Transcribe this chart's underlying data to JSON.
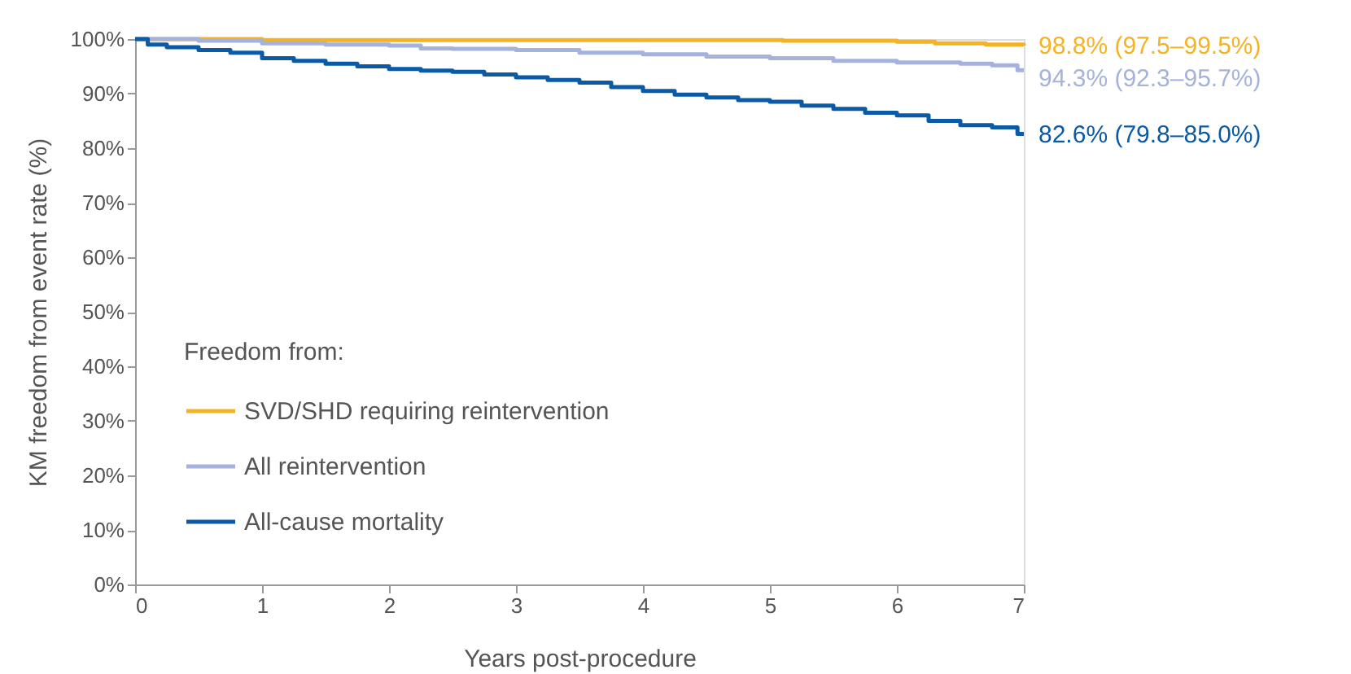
{
  "chart_data": {
    "type": "step",
    "xlabel": "Years post-procedure",
    "ylabel": "KM freedom from event rate (%)",
    "legend_title": "Freedom from:",
    "xlim": [
      0,
      7
    ],
    "xticks": [
      0,
      1,
      2,
      3,
      4,
      5,
      6,
      7
    ],
    "ylim": [
      0,
      100
    ],
    "yticks": [
      {
        "value": 0,
        "label": "0%"
      },
      {
        "value": 10,
        "label": "10%"
      },
      {
        "value": 20,
        "label": "20%"
      },
      {
        "value": 30,
        "label": "30%"
      },
      {
        "value": 40,
        "label": "40%"
      },
      {
        "value": 50,
        "label": "50%"
      },
      {
        "value": 60,
        "label": "60%"
      },
      {
        "value": 70,
        "label": "70%"
      },
      {
        "value": 80,
        "label": "80%"
      },
      {
        "value": 90,
        "label": "90%"
      },
      {
        "value": 100,
        "label": "100%"
      }
    ],
    "grid": false,
    "legend": "bottom left",
    "line_style": "solid",
    "marker": "none",
    "series": [
      {
        "name": "SVD/SHD requiring reintervention",
        "color": "#f5b324",
        "x": [
          0,
          1,
          5.1,
          6.0,
          6.3,
          6.7,
          7
        ],
        "values": [
          100,
          99.8,
          99.7,
          99.5,
          99.2,
          99.0,
          98.8
        ]
      },
      {
        "name": "All reintervention",
        "color": "#a5b3dc",
        "x": [
          0,
          0.5,
          1,
          1.5,
          2,
          2.25,
          2.5,
          3,
          3.5,
          4,
          4.5,
          5,
          5.5,
          6,
          6.5,
          6.75,
          6.95,
          7
        ],
        "values": [
          100,
          99.7,
          99.2,
          99,
          98.8,
          98.3,
          98.2,
          98,
          97.5,
          97.2,
          96.8,
          96.5,
          96,
          95.7,
          95.5,
          95.2,
          94.3,
          94.3
        ]
      },
      {
        "name": "All-cause mortality",
        "color": "#0b5aa6",
        "x": [
          0,
          0.1,
          0.25,
          0.5,
          0.75,
          1,
          1.25,
          1.5,
          1.75,
          2,
          2.25,
          2.5,
          2.75,
          3,
          3.25,
          3.5,
          3.75,
          4,
          4.25,
          4.5,
          4.75,
          5,
          5.25,
          5.5,
          5.75,
          6,
          6.25,
          6.5,
          6.75,
          6.95,
          7
        ],
        "values": [
          100,
          99,
          98.5,
          98,
          97.5,
          96.5,
          96,
          95.5,
          95,
          94.5,
          94.2,
          94,
          93.5,
          93,
          92.5,
          92,
          91.2,
          90.5,
          89.8,
          89.3,
          88.8,
          88.5,
          87.8,
          87.2,
          86.5,
          86,
          85,
          84.2,
          83.8,
          82.6,
          82.6
        ]
      }
    ],
    "annotations": [
      "98.8% (97.5–99.5%)",
      "94.3% (92.3–95.7%)",
      "82.6% (79.8–85.0%)"
    ]
  }
}
